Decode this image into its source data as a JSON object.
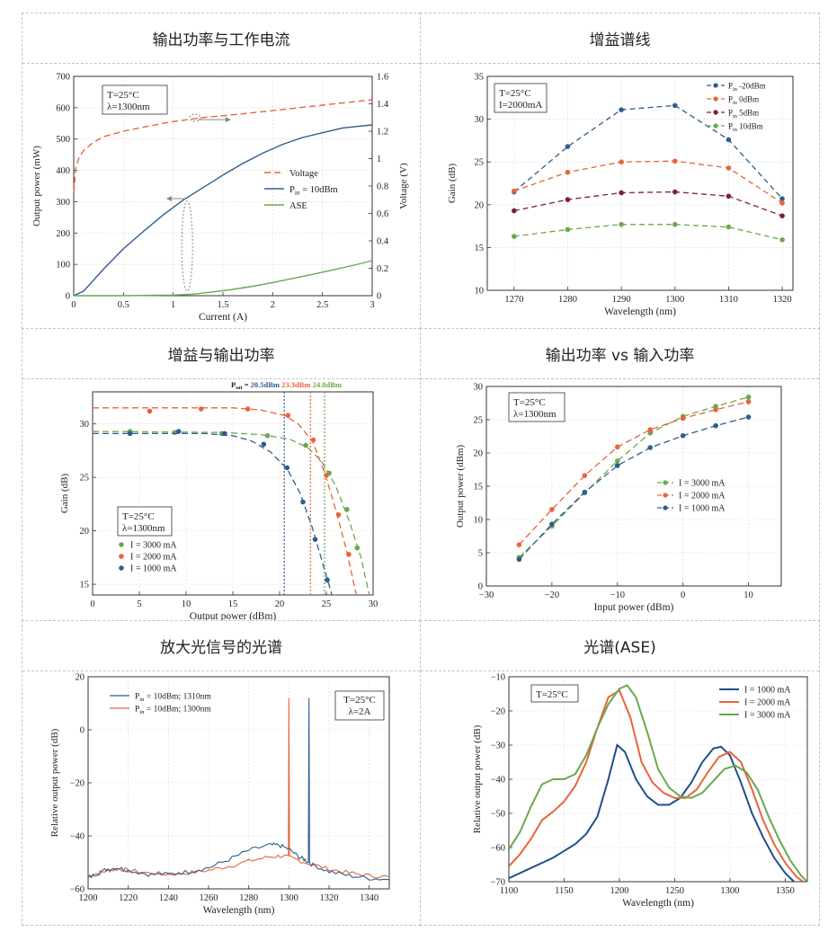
{
  "panels": [
    {
      "title": "输出功率与工作电流"
    },
    {
      "title": "增益谱线"
    },
    {
      "title": "增益与输出功率"
    },
    {
      "title": "输出功率 vs 输入功率"
    },
    {
      "title": "放大光信号的光谱"
    },
    {
      "title": "光谱(ASE)"
    }
  ],
  "chart_data": [
    {
      "type": "line",
      "title": "输出功率与工作电流",
      "xlabel": "Current (A)",
      "ylabel": "Output power (mW)",
      "y2label": "Voltage (V)",
      "xlim": [
        0,
        3
      ],
      "ylim": [
        0,
        700
      ],
      "y2lim": [
        0,
        1.6
      ],
      "xticks": [
        "0",
        "0.5",
        "1",
        "1.5",
        "2",
        "2.5",
        "3"
      ],
      "yticks": [
        "0",
        "100",
        "200",
        "300",
        "400",
        "500",
        "600",
        "700"
      ],
      "y2ticks": [
        "0",
        "0.2",
        "0.4",
        "0.6",
        "0.8",
        "1",
        "1.2",
        "1.4",
        "1.6"
      ],
      "annotation": [
        "T=25°C",
        "λ=1300nm"
      ],
      "series": [
        {
          "name": "Voltage",
          "axis": "y2",
          "style": "dashed",
          "color": "#e8643c",
          "x": [
            0,
            0.02,
            0.05,
            0.1,
            0.2,
            0.3,
            0.5,
            0.7,
            1,
            1.3,
            1.6,
            2,
            2.5,
            3
          ],
          "y": [
            0.75,
            0.93,
            1.0,
            1.06,
            1.12,
            1.16,
            1.2,
            1.23,
            1.27,
            1.3,
            1.32,
            1.35,
            1.39,
            1.43
          ]
        },
        {
          "name": "P_in = 10dBm",
          "axis": "y",
          "style": "solid",
          "color": "#2e5d8e",
          "x": [
            0,
            0.1,
            0.3,
            0.5,
            0.7,
            0.9,
            1.1,
            1.3,
            1.5,
            1.7,
            1.9,
            2.1,
            2.3,
            2.5,
            2.7,
            2.9,
            3
          ],
          "y": [
            0,
            15,
            85,
            150,
            205,
            258,
            305,
            345,
            385,
            422,
            455,
            483,
            505,
            520,
            535,
            542,
            545
          ]
        },
        {
          "name": "ASE",
          "axis": "y",
          "style": "solid",
          "color": "#6aa84f",
          "x": [
            0,
            0.5,
            1,
            1.2,
            1.4,
            1.6,
            1.8,
            2,
            2.2,
            2.4,
            2.6,
            2.8,
            3
          ],
          "y": [
            0,
            0,
            2,
            5,
            12,
            20,
            30,
            42,
            55,
            68,
            82,
            96,
            112
          ]
        }
      ]
    },
    {
      "type": "line",
      "title": "增益谱线",
      "xlabel": "Wavelength (nm)",
      "ylabel": "Gain (dB)",
      "xlim": [
        1265,
        1322
      ],
      "ylim": [
        10,
        35
      ],
      "categories": [
        1270,
        1280,
        1290,
        1300,
        1310,
        1320
      ],
      "xticks": [
        "1270",
        "1280",
        "1290",
        "1300",
        "1310",
        "1320"
      ],
      "yticks": [
        "10",
        "15",
        "20",
        "25",
        "30",
        "35"
      ],
      "annotation": [
        "T=25°C",
        "I=2000mA"
      ],
      "series": [
        {
          "name": "P_in -20dBm",
          "sub": "in",
          "label": "P",
          "suffix": " -20dBm",
          "color": "#2e5d8e",
          "values": [
            21.5,
            26.8,
            31.1,
            31.6,
            27.6,
            20.7
          ]
        },
        {
          "name": "P_in 0dBm",
          "sub": "in",
          "label": "P",
          "suffix": " 0dBm",
          "color": "#e8643c",
          "values": [
            21.6,
            23.8,
            25.0,
            25.1,
            24.3,
            20.2
          ]
        },
        {
          "name": "P_in 5dBm",
          "sub": "in",
          "label": "P",
          "suffix": " 5dBm",
          "color": "#7b1f3a",
          "values": [
            19.3,
            20.6,
            21.4,
            21.5,
            21.0,
            18.7
          ]
        },
        {
          "name": "P_in 10dBm",
          "sub": "in",
          "label": "P",
          "suffix": " 10dBm",
          "color": "#6aa84f",
          "values": [
            16.3,
            17.1,
            17.7,
            17.7,
            17.4,
            15.9
          ]
        }
      ]
    },
    {
      "type": "scatter",
      "title": "增益与输出功率",
      "xlabel": "Output power (dBm)",
      "ylabel": "Gain (dB)",
      "xlim": [
        0,
        30
      ],
      "ylim": [
        14,
        33
      ],
      "xticks": [
        "0",
        "5",
        "10",
        "15",
        "20",
        "25",
        "30"
      ],
      "yticks": [
        "15",
        "20",
        "25",
        "30"
      ],
      "annotation": [
        "T=25°C",
        "λ=1300nm"
      ],
      "psat": [
        {
          "label": "20.5dBm",
          "x": 20.5,
          "color": "#2e5d8e"
        },
        {
          "label": "23.3dBm",
          "x": 23.3,
          "color": "#e8643c"
        },
        {
          "label": "24.8dBm",
          "x": 24.8,
          "color": "#6aa84f"
        }
      ],
      "psat_prefix": "P",
      "psat_sub": "sat",
      "psat_eq": " = ",
      "series": [
        {
          "name": "I = 3000 mA",
          "color": "#6aa84f",
          "points": [
            [
              4,
              29.3
            ],
            [
              8.8,
              29.2
            ],
            [
              13.8,
              29.1
            ],
            [
              18.7,
              28.9
            ],
            [
              22.8,
              28.0
            ],
            [
              25.3,
              25.4
            ],
            [
              27.2,
              22.0
            ],
            [
              28.3,
              18.4
            ]
          ],
          "fit": [
            [
              0,
              29.3
            ],
            [
              14,
              29.2
            ],
            [
              18,
              29.0
            ],
            [
              21,
              28.6
            ],
            [
              23,
              27.8
            ],
            [
              24.5,
              26.5
            ],
            [
              26,
              24.2
            ],
            [
              27.5,
              20.8
            ],
            [
              28.7,
              17.5
            ],
            [
              29.6,
              14
            ]
          ]
        },
        {
          "name": "I = 2000 mA",
          "color": "#e8643c",
          "points": [
            [
              6.1,
              31.2
            ],
            [
              11.6,
              31.4
            ],
            [
              16.6,
              31.4
            ],
            [
              20.9,
              30.8
            ],
            [
              23.6,
              28.5
            ],
            [
              25.0,
              25.2
            ],
            [
              26.3,
              21.5
            ],
            [
              27.4,
              17.8
            ]
          ],
          "fit": [
            [
              0,
              31.5
            ],
            [
              15,
              31.5
            ],
            [
              18,
              31.3
            ],
            [
              20.5,
              30.8
            ],
            [
              22,
              30.0
            ],
            [
              23.5,
              28.4
            ],
            [
              24.8,
              25.5
            ],
            [
              26,
              22.0
            ],
            [
              27.2,
              18.0
            ],
            [
              28.2,
              14
            ]
          ]
        },
        {
          "name": "I = 1000 mA",
          "color": "#2e5d8e",
          "points": [
            [
              4,
              29.1
            ],
            [
              9.2,
              29.3
            ],
            [
              14.1,
              29.1
            ],
            [
              18.3,
              28.1
            ],
            [
              20.8,
              25.9
            ],
            [
              22.5,
              22.7
            ],
            [
              23.8,
              19.2
            ],
            [
              25.1,
              15.4
            ]
          ],
          "fit": [
            [
              0,
              29.1
            ],
            [
              12,
              29.1
            ],
            [
              15,
              28.9
            ],
            [
              17,
              28.4
            ],
            [
              19,
              27.4
            ],
            [
              20.8,
              25.8
            ],
            [
              22.2,
              23.5
            ],
            [
              23.5,
              20.3
            ],
            [
              24.6,
              17.0
            ],
            [
              25.6,
              14
            ]
          ]
        }
      ]
    },
    {
      "type": "scatter",
      "title": "输出功率 vs 输入功率",
      "xlabel": "Input power (dBm)",
      "ylabel": "Output power (dBm)",
      "xlim": [
        -30,
        15
      ],
      "ylim": [
        0,
        30
      ],
      "xticks": [
        "−30",
        "−20",
        "−10",
        "0",
        "10"
      ],
      "yticks": [
        "0",
        "5",
        "10",
        "15",
        "20",
        "25",
        "30"
      ],
      "annotation": [
        "T=25°C",
        "λ=1300nm"
      ],
      "series": [
        {
          "name": "I = 3000 mA",
          "color": "#6aa84f",
          "points": [
            [
              -25,
              4.3
            ],
            [
              -20,
              9.0
            ],
            [
              -15,
              14.0
            ],
            [
              -10,
              18.8
            ],
            [
              -5,
              23.0
            ],
            [
              0,
              25.5
            ],
            [
              5,
              27.0
            ],
            [
              10,
              28.4
            ]
          ]
        },
        {
          "name": "I = 2000 mA",
          "color": "#e8643c",
          "points": [
            [
              -25,
              6.2
            ],
            [
              -20,
              11.5
            ],
            [
              -15,
              16.6
            ],
            [
              -10,
              20.9
            ],
            [
              -5,
              23.5
            ],
            [
              0,
              25.2
            ],
            [
              5,
              26.5
            ],
            [
              10,
              27.7
            ]
          ]
        },
        {
          "name": "I = 1000 mA",
          "color": "#2e5d8e",
          "points": [
            [
              -25,
              4.0
            ],
            [
              -20,
              9.3
            ],
            [
              -15,
              14.1
            ],
            [
              -10,
              18.1
            ],
            [
              -5,
              20.8
            ],
            [
              0,
              22.6
            ],
            [
              5,
              24.1
            ],
            [
              10,
              25.4
            ]
          ]
        }
      ]
    },
    {
      "type": "line",
      "title": "放大光信号的光谱",
      "xlabel": "Wavelength (nm)",
      "ylabel": "Relative output power (dB)",
      "xlim": [
        1200,
        1350
      ],
      "ylim": [
        -60,
        20
      ],
      "xticks": [
        "1200",
        "1220",
        "1240",
        "1260",
        "1280",
        "1300",
        "1320",
        "1340"
      ],
      "yticks": [
        "−60",
        "−40",
        "−20",
        "0",
        "20"
      ],
      "annotation": [
        "T=25°C",
        "λ=2A"
      ],
      "series": [
        {
          "name": "P_in = 10dBm; 1310nm",
          "label": "P",
          "sub": "in",
          "suffix": " = 10dBm; 1310nm",
          "color": "#2e5d8e",
          "peak": 1310,
          "x": [
            1200,
            1205,
            1210,
            1215,
            1220,
            1230,
            1240,
            1250,
            1260,
            1270,
            1280,
            1290,
            1295,
            1300,
            1305,
            1308,
            1312,
            1320,
            1330,
            1340,
            1350
          ],
          "y": [
            -56,
            -54,
            -52.5,
            -52,
            -53,
            -54.5,
            -54.5,
            -53.5,
            -52,
            -49,
            -45.5,
            -43.5,
            -43.5,
            -45,
            -48,
            -49,
            -51,
            -53.5,
            -55,
            -56,
            -56.5
          ]
        },
        {
          "name": "P_in = 10dBm; 1300nm",
          "label": "P",
          "sub": "in",
          "suffix": " = 10dBm; 1300nm",
          "color": "#e8643c",
          "peak": 1300,
          "x": [
            1200,
            1205,
            1210,
            1215,
            1220,
            1230,
            1240,
            1250,
            1260,
            1270,
            1280,
            1290,
            1297,
            1302,
            1310,
            1320,
            1330,
            1340,
            1350
          ],
          "y": [
            -55,
            -54,
            -53,
            -52.5,
            -53,
            -54,
            -54.5,
            -54,
            -53,
            -51.5,
            -49.5,
            -48,
            -47.5,
            -48.5,
            -50.5,
            -52.5,
            -54,
            -55,
            -55.5
          ]
        }
      ]
    },
    {
      "type": "line",
      "title": "光谱(ASE)",
      "xlabel": "Wavelength (nm)",
      "ylabel": "Relative output power (dB)",
      "xlim": [
        1100,
        1370
      ],
      "ylim": [
        -70,
        -10
      ],
      "xticks": [
        "1100",
        "1150",
        "1200",
        "1250",
        "1300",
        "1350"
      ],
      "yticks": [
        "−70",
        "−60",
        "−50",
        "−40",
        "−30",
        "−20",
        "−10"
      ],
      "annotation": [
        "T=25°C"
      ],
      "series": [
        {
          "name": "I = 1000 mA",
          "color": "#1f4e8c",
          "x": [
            1100,
            1110,
            1120,
            1130,
            1140,
            1150,
            1160,
            1170,
            1180,
            1190,
            1198,
            1205,
            1215,
            1225,
            1235,
            1245,
            1255,
            1265,
            1275,
            1285,
            1292,
            1300,
            1310,
            1320,
            1330,
            1340,
            1350,
            1358
          ],
          "y": [
            -69,
            -67.5,
            -66,
            -64.5,
            -63,
            -61,
            -59,
            -56,
            -51,
            -40,
            -30,
            -32,
            -40,
            -45,
            -47.5,
            -47.5,
            -45.5,
            -41,
            -35,
            -31,
            -30.5,
            -33,
            -41,
            -50,
            -57,
            -63,
            -67.5,
            -70
          ]
        },
        {
          "name": "I = 2000 mA",
          "color": "#e8643c",
          "x": [
            1100,
            1110,
            1120,
            1130,
            1140,
            1150,
            1160,
            1170,
            1180,
            1190,
            1200,
            1210,
            1220,
            1230,
            1240,
            1250,
            1260,
            1270,
            1280,
            1290,
            1300,
            1310,
            1320,
            1330,
            1340,
            1350,
            1360,
            1366
          ],
          "y": [
            -65.5,
            -62,
            -57.5,
            -52,
            -49.5,
            -46.5,
            -42,
            -35,
            -25,
            -16,
            -14,
            -22,
            -35,
            -41,
            -44,
            -45.5,
            -45.5,
            -43,
            -38,
            -33.5,
            -32,
            -35,
            -43,
            -52,
            -59,
            -64.5,
            -68.5,
            -70
          ]
        },
        {
          "name": "I = 3000 mA",
          "color": "#6aa84f",
          "x": [
            1100,
            1110,
            1120,
            1130,
            1140,
            1150,
            1160,
            1170,
            1180,
            1190,
            1200,
            1207,
            1215,
            1225,
            1235,
            1245,
            1255,
            1265,
            1275,
            1285,
            1295,
            1305,
            1315,
            1325,
            1335,
            1345,
            1355,
            1365,
            1370
          ],
          "y": [
            -60.5,
            -55.5,
            -48,
            -41.5,
            -40,
            -40,
            -38.5,
            -33,
            -25,
            -18,
            -13.5,
            -12.5,
            -16,
            -26,
            -37,
            -42.5,
            -45,
            -45.5,
            -44,
            -40.5,
            -37,
            -36,
            -38,
            -43,
            -51,
            -58,
            -64,
            -68.5,
            -70
          ]
        }
      ]
    }
  ]
}
